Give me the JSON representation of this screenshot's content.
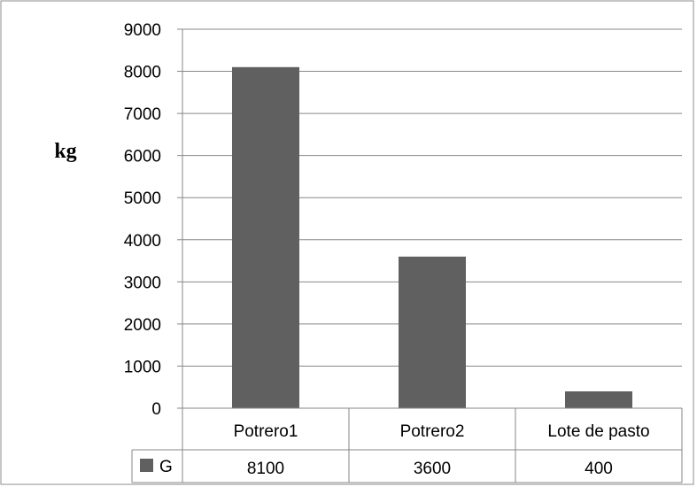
{
  "chart_data": {
    "type": "bar",
    "ylabel": "kg",
    "categories": [
      "Potrero1",
      "Potrero2",
      "Lote de pasto"
    ],
    "series": [
      {
        "name": "G",
        "values": [
          8100,
          3600,
          400
        ],
        "color": "#606060"
      }
    ],
    "ylim": [
      0,
      9000
    ],
    "yticks": [
      0,
      1000,
      2000,
      3000,
      4000,
      5000,
      6000,
      7000,
      8000,
      9000
    ],
    "grid": true,
    "legend": "data-table",
    "data_table": {
      "legend_key_color": "#606060",
      "row_label": "G",
      "cells": [
        "8100",
        "3600",
        "400"
      ]
    }
  }
}
